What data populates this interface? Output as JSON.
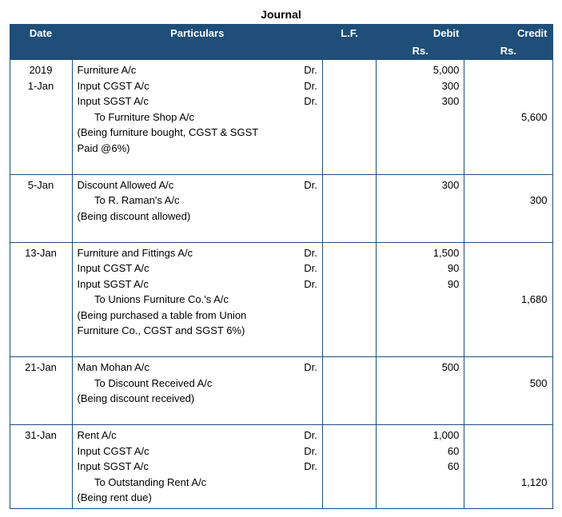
{
  "title": "Journal",
  "headers": {
    "date": "Date",
    "particulars": "Particulars",
    "lf": "L.F.",
    "debit": "Debit",
    "credit": "Credit",
    "rs": "Rs."
  },
  "entries": [
    {
      "dates": [
        "2019",
        "1-Jan"
      ],
      "lines": [
        {
          "acc": "Furniture A/c",
          "drcr": "Dr.",
          "debit": "5,000",
          "credit": ""
        },
        {
          "acc": "Input CGST A/c",
          "drcr": "Dr.",
          "debit": "300",
          "credit": ""
        },
        {
          "acc": "Input SGST A/c",
          "drcr": "Dr.",
          "debit": "300",
          "credit": ""
        },
        {
          "acc": "      To Furniture Shop A/c",
          "drcr": "",
          "debit": "",
          "credit": "5,600"
        },
        {
          "acc": "(Being furniture bought, CGST & SGST",
          "drcr": "",
          "debit": "",
          "credit": ""
        },
        {
          "acc": "Paid @6%)",
          "drcr": "",
          "debit": "",
          "credit": ""
        },
        {
          "acc": " ",
          "drcr": "",
          "debit": "",
          "credit": ""
        }
      ]
    },
    {
      "dates": [
        "5-Jan"
      ],
      "lines": [
        {
          "acc": "Discount Allowed A/c",
          "drcr": "Dr.",
          "debit": "300",
          "credit": ""
        },
        {
          "acc": "      To R. Raman's A/c",
          "drcr": "",
          "debit": "",
          "credit": "300"
        },
        {
          "acc": "(Being discount allowed)",
          "drcr": "",
          "debit": "",
          "credit": ""
        },
        {
          "acc": " ",
          "drcr": "",
          "debit": "",
          "credit": ""
        }
      ]
    },
    {
      "dates": [
        "13-Jan"
      ],
      "lines": [
        {
          "acc": "Furniture and Fittings A/c",
          "drcr": "Dr.",
          "debit": "1,500",
          "credit": ""
        },
        {
          "acc": "Input CGST A/c",
          "drcr": "Dr.",
          "debit": "90",
          "credit": ""
        },
        {
          "acc": "Input SGST A/c",
          "drcr": "Dr.",
          "debit": "90",
          "credit": ""
        },
        {
          "acc": "      To Unions Furniture Co.'s A/c",
          "drcr": "",
          "debit": "",
          "credit": "1,680"
        },
        {
          "acc": "(Being purchased a table from Union",
          "drcr": "",
          "debit": "",
          "credit": ""
        },
        {
          "acc": "Furniture Co., CGST and SGST 6%)",
          "drcr": "",
          "debit": "",
          "credit": ""
        },
        {
          "acc": " ",
          "drcr": "",
          "debit": "",
          "credit": ""
        }
      ]
    },
    {
      "dates": [
        "21-Jan"
      ],
      "lines": [
        {
          "acc": "Man Mohan A/c",
          "drcr": "Dr.",
          "debit": "500",
          "credit": ""
        },
        {
          "acc": "      To Discount Received A/c",
          "drcr": "",
          "debit": "",
          "credit": "500"
        },
        {
          "acc": "(Being discount received)",
          "drcr": "",
          "debit": "",
          "credit": ""
        },
        {
          "acc": " ",
          "drcr": "",
          "debit": "",
          "credit": ""
        }
      ]
    },
    {
      "dates": [
        "31-Jan"
      ],
      "lines": [
        {
          "acc": "Rent A/c",
          "drcr": "Dr.",
          "debit": "1,000",
          "credit": ""
        },
        {
          "acc": "Input CGST A/c",
          "drcr": "Dr.",
          "debit": "60",
          "credit": ""
        },
        {
          "acc": "Input SGST A/c",
          "drcr": "Dr.",
          "debit": "60",
          "credit": ""
        },
        {
          "acc": "      To Outstanding Rent A/c",
          "drcr": "",
          "debit": "",
          "credit": "1,120"
        },
        {
          "acc": "(Being rent due)",
          "drcr": "",
          "debit": "",
          "credit": ""
        }
      ]
    }
  ]
}
